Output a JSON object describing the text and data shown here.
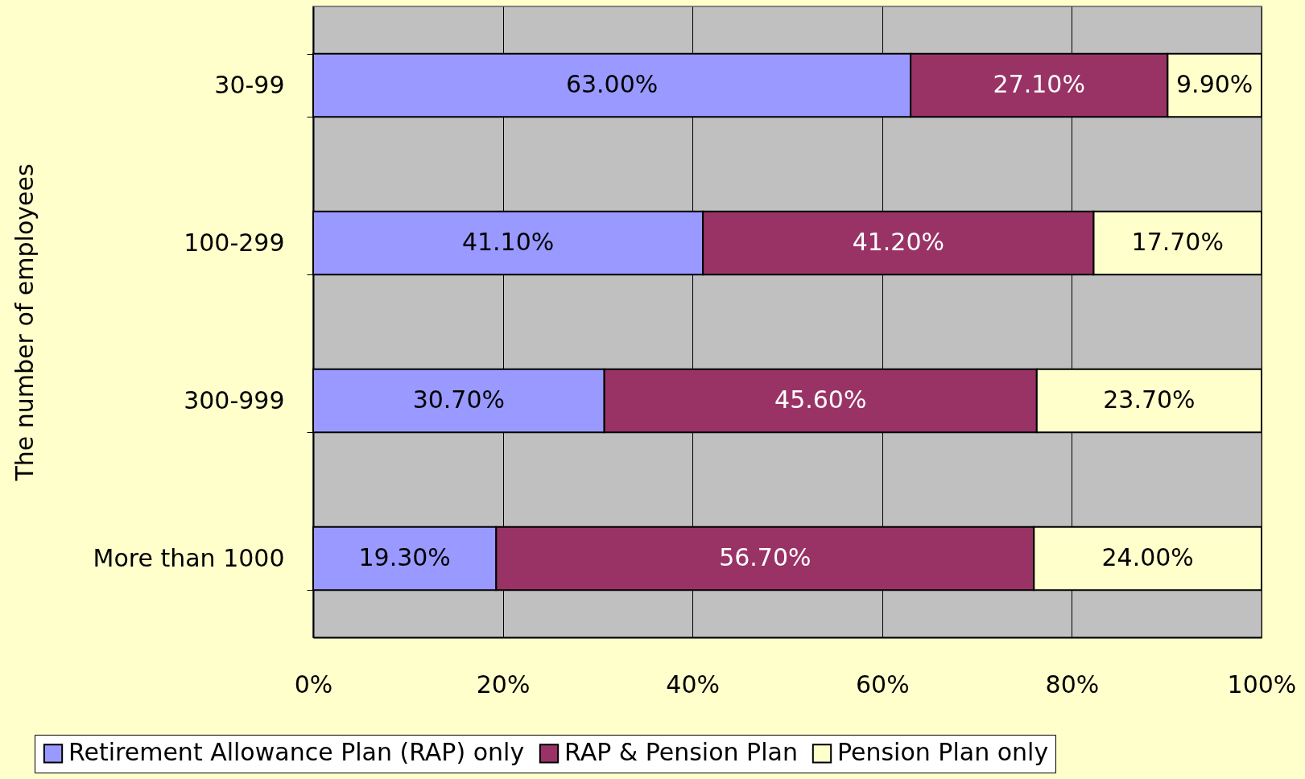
{
  "chart_data": {
    "type": "bar",
    "orientation": "horizontal",
    "stacked": true,
    "ylabel": "The number of employees",
    "categories": [
      "30-99",
      "100-299",
      "300-999",
      "More than 1000"
    ],
    "series": [
      {
        "name": "Retirement Allowance Plan (RAP) only",
        "color": "#9999ff",
        "values": [
          63.0,
          41.1,
          30.7,
          19.3
        ],
        "value_labels": [
          "63.00%",
          "41.10%",
          "30.70%",
          "19.30%"
        ]
      },
      {
        "name": "RAP & Pension Plan",
        "color": "#993366",
        "values": [
          27.1,
          41.2,
          45.6,
          56.7
        ],
        "value_labels": [
          "27.10%",
          "41.20%",
          "45.60%",
          "56.70%"
        ]
      },
      {
        "name": "Pension Plan only",
        "color": "#ffffcc",
        "values": [
          9.9,
          17.7,
          23.7,
          24.0
        ],
        "value_labels": [
          "9.90%",
          "17.70%",
          "23.70%",
          "24.00%"
        ]
      }
    ],
    "xlim": [
      0,
      100
    ],
    "xticks": [
      {
        "value": 0,
        "label": "0%"
      },
      {
        "value": 20,
        "label": "20%"
      },
      {
        "value": 40,
        "label": "40%"
      },
      {
        "value": 60,
        "label": "60%"
      },
      {
        "value": 80,
        "label": "80%"
      },
      {
        "value": 100,
        "label": "100%"
      }
    ],
    "grid": "x",
    "legend": "bottom"
  }
}
